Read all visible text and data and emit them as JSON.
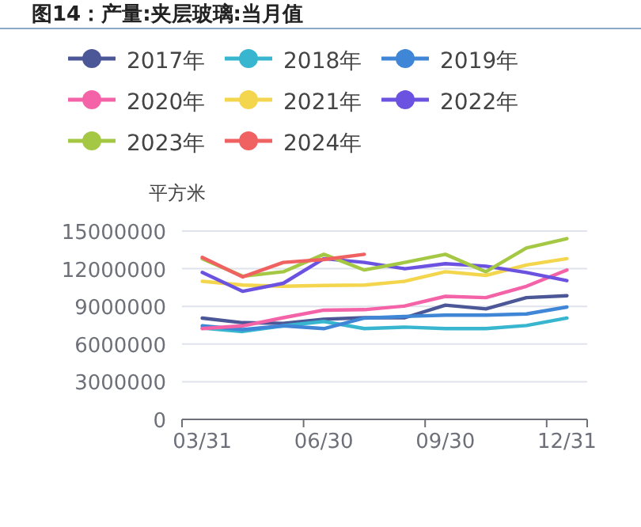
{
  "chart_data": {
    "type": "line",
    "title": "图14：产量:夹层玻璃:当月值",
    "ylabel": "平方米",
    "categories": [
      "03/31",
      null,
      null,
      "06/30",
      null,
      null,
      "09/30",
      null,
      null,
      "12/31"
    ],
    "ylim": [
      0,
      15000000
    ],
    "yticks": [
      0,
      3000000,
      6000000,
      9000000,
      12000000,
      15000000
    ],
    "grid": "y",
    "legend": "top",
    "marker": "none",
    "series": [
      {
        "name": "2017年",
        "color": "#4b5797",
        "values": [
          8070000,
          7700000,
          7650000,
          7980000,
          8100000,
          8100000,
          9100000,
          8800000,
          9700000,
          9850000
        ]
      },
      {
        "name": "2018年",
        "color": "#38b6d0",
        "values": [
          7270000,
          7000000,
          7450000,
          7800000,
          7230000,
          7350000,
          7230000,
          7230000,
          7480000,
          8070000
        ]
      },
      {
        "name": "2019年",
        "color": "#3f86d6",
        "values": [
          7450000,
          7150000,
          7450000,
          7230000,
          8070000,
          8200000,
          8300000,
          8300000,
          8400000,
          8950000
        ]
      },
      {
        "name": "2020年",
        "color": "#f462a8",
        "values": [
          7230000,
          7450000,
          8100000,
          8700000,
          8740000,
          9030000,
          9800000,
          9700000,
          10600000,
          11900000
        ]
      },
      {
        "name": "2021年",
        "color": "#f4d54e",
        "values": [
          11000000,
          10700000,
          10600000,
          10670000,
          10700000,
          11000000,
          11760000,
          11470000,
          12300000,
          12800000
        ]
      },
      {
        "name": "2022年",
        "color": "#6c52e0",
        "values": [
          11700000,
          10200000,
          10840000,
          12800000,
          12500000,
          12000000,
          12400000,
          12200000,
          11700000,
          11050000
        ]
      },
      {
        "name": "2023年",
        "color": "#a4c843",
        "values": [
          12800000,
          11400000,
          11760000,
          13150000,
          11900000,
          12500000,
          13150000,
          11760000,
          13650000,
          14400000
        ]
      },
      {
        "name": "2024年",
        "color": "#f06262",
        "values": [
          12900000,
          11350000,
          12500000,
          12730000,
          13150000,
          null,
          null,
          null,
          null,
          null
        ]
      }
    ]
  }
}
